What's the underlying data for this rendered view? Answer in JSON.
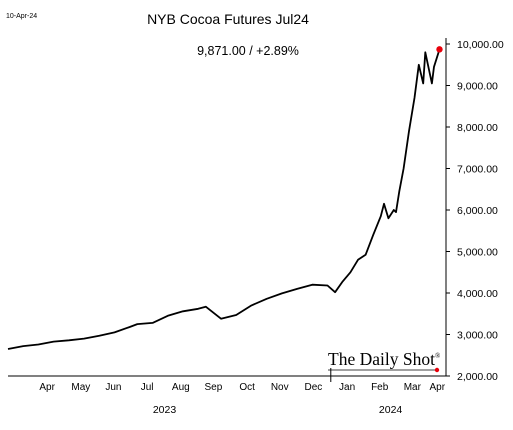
{
  "date_label": "10-Apr-24",
  "brand": "The Daily Shot",
  "brand_mark": "®",
  "colors": {
    "line": "#000000",
    "last_point": "#e8000b",
    "axis": "#000000",
    "background": "#ffffff"
  },
  "chart_data": {
    "type": "line",
    "title": "NYB Cocoa Futures Jul24",
    "subtitle": "9,871.00  /  +2.89%",
    "last_value": 9871,
    "change_pct": 2.89,
    "ylim": [
      2000,
      10000
    ],
    "yticks": [
      2000,
      3000,
      4000,
      5000,
      6000,
      7000,
      8000,
      9000,
      10000
    ],
    "ytick_labels": [
      "2,000.00",
      "3,000.00",
      "4,000.00",
      "5,000.00",
      "6,000.00",
      "7,000.00",
      "8,000.00",
      "9,000.00",
      "10,000.00"
    ],
    "y_axis_side": "right",
    "grid": false,
    "legend": "none",
    "xlim": [
      "2023-03-10",
      "2024-04-16"
    ],
    "month_labels": [
      {
        "label": "Apr",
        "date": "2023-04-15"
      },
      {
        "label": "May",
        "date": "2023-05-16"
      },
      {
        "label": "Jun",
        "date": "2023-06-15"
      },
      {
        "label": "Jul",
        "date": "2023-07-16"
      },
      {
        "label": "Aug",
        "date": "2023-08-16"
      },
      {
        "label": "Sep",
        "date": "2023-09-15"
      },
      {
        "label": "Oct",
        "date": "2023-10-16"
      },
      {
        "label": "Nov",
        "date": "2023-11-15"
      },
      {
        "label": "Dec",
        "date": "2023-12-16"
      },
      {
        "label": "Jan",
        "date": "2024-01-16"
      },
      {
        "label": "Feb",
        "date": "2024-02-15"
      },
      {
        "label": "Mar",
        "date": "2024-03-16"
      },
      {
        "label": "Apr",
        "date": "2024-04-08"
      }
    ],
    "year_labels": [
      {
        "label": "2023",
        "date": "2023-08-01"
      },
      {
        "label": "2024",
        "date": "2024-02-25"
      }
    ],
    "year_divider": "2024-01-01",
    "series": [
      {
        "x": [
          "2023-03-10",
          "2023-03-24",
          "2023-04-07",
          "2023-04-21",
          "2023-05-05",
          "2023-05-19",
          "2023-06-02",
          "2023-06-16",
          "2023-06-30",
          "2023-07-07",
          "2023-07-21",
          "2023-08-04",
          "2023-08-18",
          "2023-09-01",
          "2023-09-08",
          "2023-09-22",
          "2023-10-06",
          "2023-10-20",
          "2023-11-03",
          "2023-11-17",
          "2023-12-01",
          "2023-12-15",
          "2023-12-29",
          "2024-01-05",
          "2024-01-12",
          "2024-01-19",
          "2024-01-26",
          "2024-02-02",
          "2024-02-09",
          "2024-02-16",
          "2024-02-19",
          "2024-02-23",
          "2024-02-28",
          "2024-03-01",
          "2024-03-04",
          "2024-03-08",
          "2024-03-13",
          "2024-03-18",
          "2024-03-22",
          "2024-03-26",
          "2024-03-28",
          "2024-04-03",
          "2024-04-05",
          "2024-04-10"
        ],
        "y": [
          2650,
          2720,
          2760,
          2830,
          2860,
          2900,
          2970,
          3050,
          3180,
          3250,
          3280,
          3450,
          3560,
          3620,
          3670,
          3380,
          3470,
          3700,
          3860,
          3990,
          4100,
          4200,
          4180,
          4020,
          4280,
          4500,
          4800,
          4920,
          5400,
          5850,
          6150,
          5800,
          6000,
          5950,
          6450,
          7000,
          7900,
          8700,
          9500,
          9050,
          9800,
          9050,
          9450,
          9871
        ]
      }
    ]
  }
}
